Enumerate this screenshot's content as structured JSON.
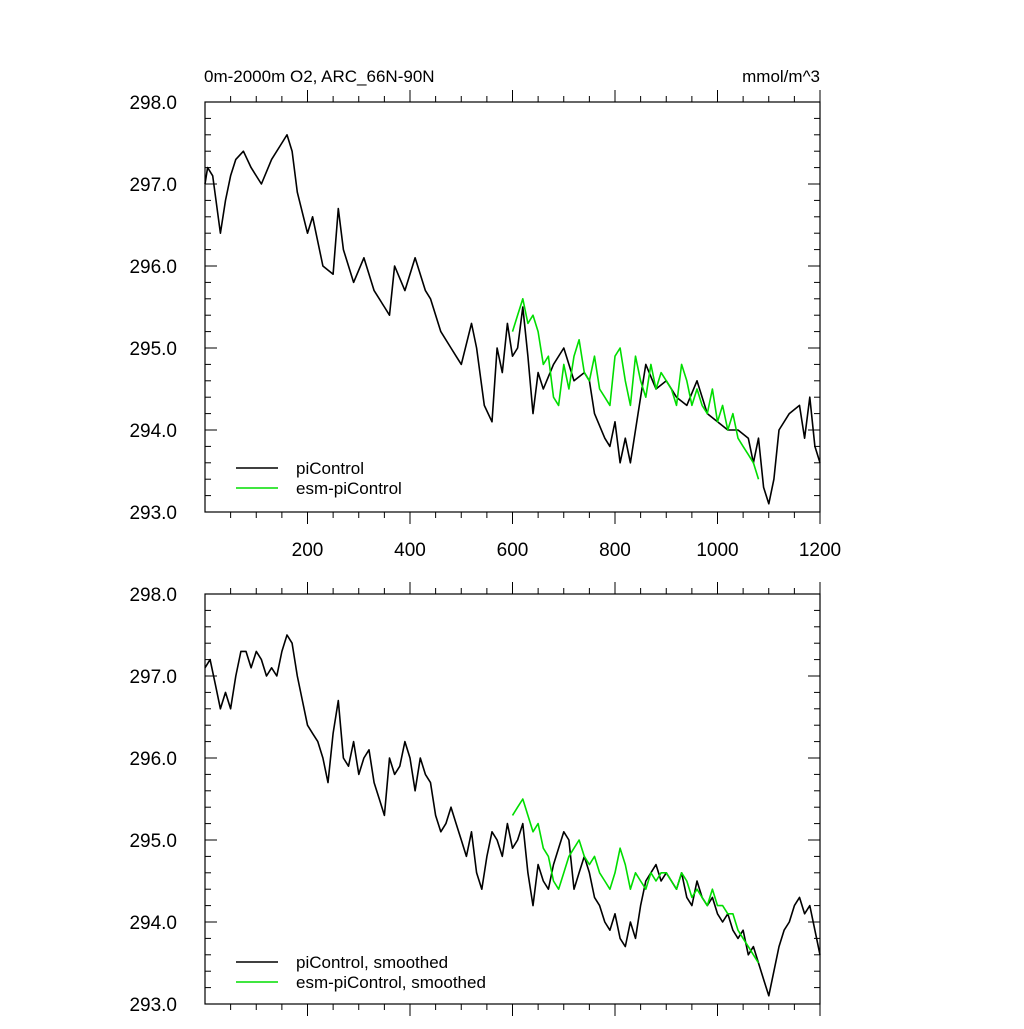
{
  "chart_data": [
    {
      "type": "line",
      "title": "0m-2000m O2, ARC_66N-90N",
      "units": "mmol/m^3",
      "xlim": [
        0,
        1200
      ],
      "ylim": [
        293.0,
        298.0
      ],
      "x_ticks": [
        200,
        400,
        600,
        800,
        1000,
        1200
      ],
      "y_ticks": [
        "298.0",
        "297.0",
        "296.0",
        "295.0",
        "294.0",
        "293.0"
      ],
      "legend_position": "bottom-left",
      "series": [
        {
          "name": "piControl",
          "color": "#000000",
          "x": [
            0,
            5,
            15,
            30,
            40,
            50,
            60,
            75,
            90,
            110,
            130,
            150,
            160,
            170,
            180,
            200,
            210,
            230,
            250,
            260,
            270,
            290,
            310,
            330,
            350,
            360,
            370,
            390,
            410,
            430,
            440,
            460,
            480,
            490,
            500,
            520,
            530,
            545,
            560,
            570,
            580,
            590,
            600,
            610,
            620,
            630,
            640,
            650,
            660,
            680,
            700,
            720,
            740,
            750,
            760,
            780,
            790,
            800,
            810,
            820,
            830,
            840,
            850,
            860,
            880,
            900,
            920,
            940,
            960,
            980,
            1000,
            1020,
            1040,
            1060,
            1070,
            1080,
            1090,
            1100,
            1110,
            1120,
            1140,
            1160,
            1170,
            1180,
            1190,
            1200
          ],
          "values": [
            297.0,
            297.2,
            297.1,
            296.4,
            296.8,
            297.1,
            297.3,
            297.4,
            297.2,
            297.0,
            297.3,
            297.5,
            297.6,
            297.4,
            296.9,
            296.4,
            296.6,
            296.0,
            295.9,
            296.7,
            296.2,
            295.8,
            296.1,
            295.7,
            295.5,
            295.4,
            296.0,
            295.7,
            296.1,
            295.7,
            295.6,
            295.2,
            295.0,
            294.9,
            294.8,
            295.3,
            295.0,
            294.3,
            294.1,
            295.0,
            294.7,
            295.3,
            294.9,
            295.0,
            295.5,
            294.9,
            294.2,
            294.7,
            294.5,
            294.8,
            295.0,
            294.6,
            294.7,
            294.6,
            294.2,
            293.9,
            293.8,
            294.1,
            293.6,
            293.9,
            293.6,
            294.0,
            294.4,
            294.8,
            294.5,
            294.6,
            294.4,
            294.3,
            294.6,
            294.2,
            294.1,
            294.0,
            294.0,
            293.9,
            293.6,
            293.9,
            293.3,
            293.1,
            293.4,
            294.0,
            294.2,
            294.3,
            293.9,
            294.4,
            293.8,
            293.6
          ]
        },
        {
          "name": "esm-piControl",
          "color": "#00dd00",
          "x": [
            600,
            610,
            620,
            630,
            640,
            650,
            660,
            670,
            680,
            690,
            700,
            710,
            720,
            730,
            740,
            750,
            760,
            770,
            780,
            790,
            800,
            810,
            820,
            830,
            840,
            850,
            860,
            870,
            880,
            890,
            900,
            910,
            920,
            930,
            940,
            950,
            960,
            970,
            980,
            990,
            1000,
            1010,
            1020,
            1030,
            1040,
            1050,
            1060,
            1070,
            1080
          ],
          "values": [
            295.2,
            295.4,
            295.6,
            295.3,
            295.4,
            295.2,
            294.8,
            294.9,
            294.4,
            294.3,
            294.8,
            294.5,
            294.9,
            295.1,
            294.7,
            294.6,
            294.9,
            294.5,
            294.4,
            294.3,
            294.9,
            295.0,
            294.6,
            294.3,
            294.9,
            294.6,
            294.4,
            294.8,
            294.5,
            294.7,
            294.6,
            294.5,
            294.3,
            294.8,
            294.6,
            294.3,
            294.5,
            294.3,
            294.2,
            294.5,
            294.1,
            294.3,
            294.0,
            294.2,
            293.9,
            293.8,
            293.7,
            293.6,
            293.4
          ]
        }
      ]
    },
    {
      "type": "line",
      "xlim": [
        0,
        1200
      ],
      "ylim": [
        293.0,
        298.0
      ],
      "y_ticks": [
        "298.0",
        "297.0",
        "296.0",
        "295.0",
        "294.0",
        "293.0"
      ],
      "legend_position": "bottom-left",
      "series": [
        {
          "name": "piControl, smoothed",
          "color": "#000000",
          "x": [
            0,
            10,
            20,
            30,
            40,
            50,
            60,
            70,
            80,
            90,
            100,
            110,
            120,
            130,
            140,
            150,
            160,
            170,
            180,
            190,
            200,
            210,
            220,
            230,
            240,
            250,
            260,
            270,
            280,
            290,
            300,
            310,
            320,
            330,
            340,
            350,
            360,
            370,
            380,
            390,
            400,
            410,
            420,
            430,
            440,
            450,
            460,
            470,
            480,
            490,
            500,
            510,
            520,
            530,
            540,
            550,
            560,
            570,
            580,
            590,
            600,
            610,
            620,
            630,
            640,
            650,
            660,
            670,
            680,
            690,
            700,
            710,
            720,
            730,
            740,
            750,
            760,
            770,
            780,
            790,
            800,
            810,
            820,
            830,
            840,
            850,
            860,
            870,
            880,
            890,
            900,
            910,
            920,
            930,
            940,
            950,
            960,
            970,
            980,
            990,
            1000,
            1010,
            1020,
            1030,
            1040,
            1050,
            1060,
            1070,
            1080,
            1090,
            1100,
            1110,
            1120,
            1130,
            1140,
            1150,
            1160,
            1170,
            1180,
            1190,
            1200
          ],
          "values": [
            297.1,
            297.2,
            296.9,
            296.6,
            296.8,
            296.6,
            297.0,
            297.3,
            297.3,
            297.1,
            297.3,
            297.2,
            297.0,
            297.1,
            297.0,
            297.3,
            297.5,
            297.4,
            297.0,
            296.7,
            296.4,
            296.3,
            296.2,
            296.0,
            295.7,
            296.3,
            296.7,
            296.0,
            295.9,
            296.2,
            295.8,
            296.0,
            296.1,
            295.7,
            295.5,
            295.3,
            296.0,
            295.8,
            295.9,
            296.2,
            296.0,
            295.6,
            296.0,
            295.8,
            295.7,
            295.3,
            295.1,
            295.2,
            295.4,
            295.2,
            295.0,
            294.8,
            295.1,
            294.6,
            294.4,
            294.8,
            295.1,
            295.0,
            294.8,
            295.2,
            294.9,
            295.0,
            295.2,
            294.6,
            294.2,
            294.7,
            294.5,
            294.4,
            294.7,
            294.9,
            295.1,
            295.0,
            294.4,
            294.6,
            294.8,
            294.6,
            294.3,
            294.2,
            294.0,
            293.9,
            294.1,
            293.8,
            293.7,
            294.0,
            293.8,
            294.2,
            294.5,
            294.6,
            294.7,
            294.5,
            294.6,
            294.5,
            294.4,
            294.6,
            294.3,
            294.2,
            294.5,
            294.3,
            294.2,
            294.3,
            294.1,
            294.0,
            294.1,
            293.9,
            293.8,
            293.9,
            293.6,
            293.7,
            293.5,
            293.3,
            293.1,
            293.4,
            293.7,
            293.9,
            294.0,
            294.2,
            294.3,
            294.1,
            294.2,
            293.9,
            293.6
          ]
        },
        {
          "name": "esm-piControl, smoothed",
          "color": "#00dd00",
          "x": [
            600,
            610,
            620,
            630,
            640,
            650,
            660,
            670,
            680,
            690,
            700,
            710,
            720,
            730,
            740,
            750,
            760,
            770,
            780,
            790,
            800,
            810,
            820,
            830,
            840,
            850,
            860,
            870,
            880,
            890,
            900,
            910,
            920,
            930,
            940,
            950,
            960,
            970,
            980,
            990,
            1000,
            1010,
            1020,
            1030,
            1040,
            1050,
            1060,
            1070,
            1080
          ],
          "values": [
            295.3,
            295.4,
            295.5,
            295.3,
            295.1,
            295.2,
            294.9,
            294.8,
            294.5,
            294.4,
            294.6,
            294.8,
            294.9,
            295.0,
            294.8,
            294.7,
            294.8,
            294.6,
            294.5,
            294.4,
            294.6,
            294.9,
            294.7,
            294.4,
            294.6,
            294.5,
            294.4,
            294.6,
            294.5,
            294.6,
            294.6,
            294.5,
            294.4,
            294.6,
            294.5,
            294.3,
            294.4,
            294.3,
            294.2,
            294.4,
            294.2,
            294.2,
            294.1,
            294.1,
            293.9,
            293.8,
            293.7,
            293.6,
            293.5
          ]
        }
      ]
    }
  ]
}
